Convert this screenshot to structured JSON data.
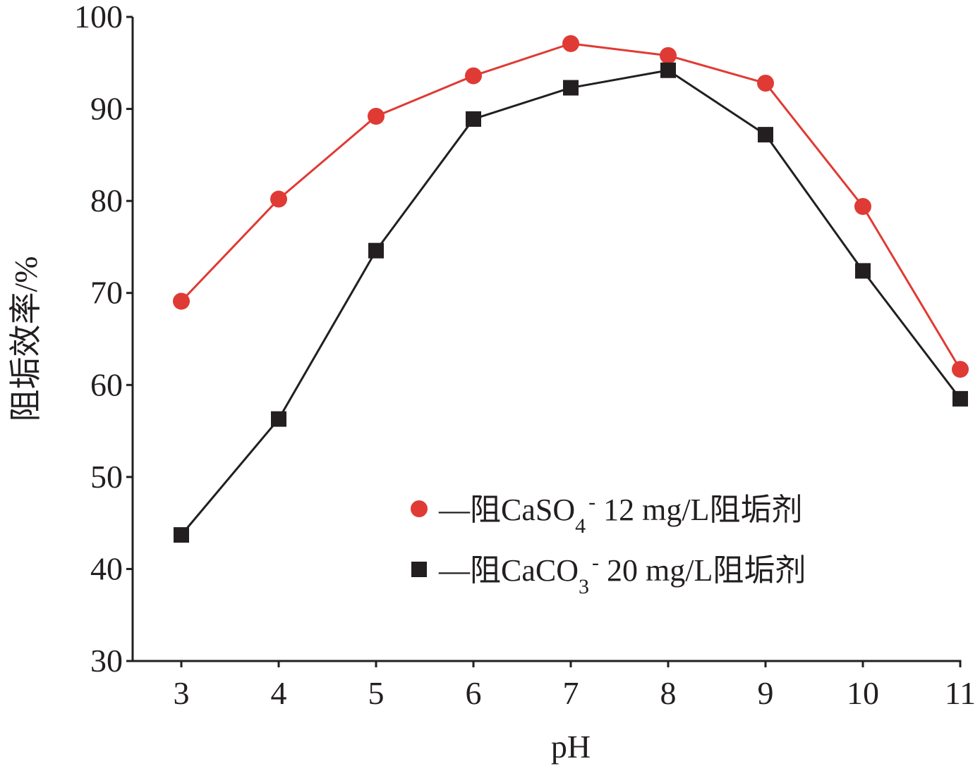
{
  "chart_data": {
    "type": "line",
    "xlabel": "pH",
    "ylabel": "阻垢效率/%",
    "x": [
      3,
      4,
      5,
      6,
      7,
      8,
      9,
      10,
      11
    ],
    "xlim": [
      2.5,
      11
    ],
    "ylim": [
      30,
      100
    ],
    "x_ticks": [
      "3",
      "4",
      "5",
      "6",
      "7",
      "8",
      "9",
      "10",
      "11"
    ],
    "y_ticks": [
      "30",
      "40",
      "50",
      "60",
      "70",
      "80",
      "90",
      "100"
    ],
    "grid": false,
    "legend_position": "lower-right",
    "series": [
      {
        "name": "—阻CaSO4- 12 mg/L阻垢剂",
        "legend": {
          "dash": "—",
          "prefix": "阻CaSO",
          "sub": "4",
          "sup": "-",
          "suffix": " 12 mg/L阻垢剂"
        },
        "marker": "circle",
        "color": "#e03a34",
        "values": [
          69.1,
          80.2,
          89.2,
          93.6,
          97.1,
          95.8,
          92.8,
          79.4,
          61.7
        ]
      },
      {
        "name": "—阻CaCO3- 20 mg/L阻垢剂",
        "legend": {
          "dash": "—",
          "prefix": "阻CaCO",
          "sub": "3",
          "sup": "-",
          "suffix": " 20 mg/L阻垢剂"
        },
        "marker": "square",
        "color": "#231f20",
        "values": [
          43.7,
          56.3,
          74.6,
          88.9,
          92.3,
          94.2,
          87.2,
          72.4,
          58.5
        ]
      }
    ]
  }
}
